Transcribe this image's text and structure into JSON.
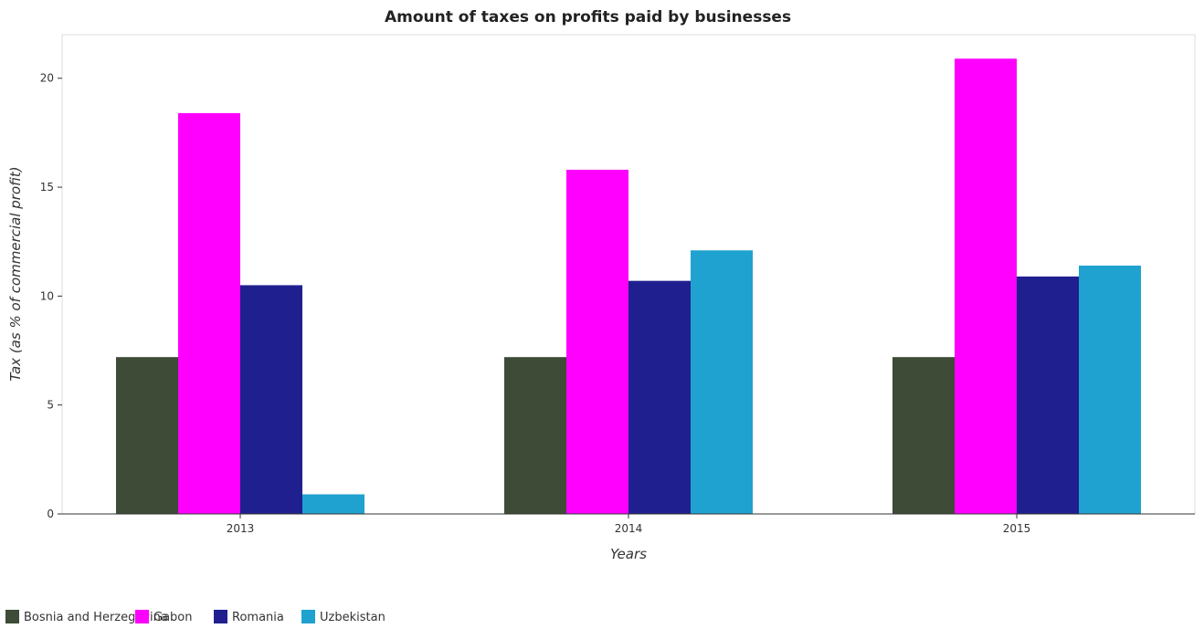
{
  "chart_data": {
    "type": "bar",
    "title": "Amount of taxes on profits paid by businesses",
    "xlabel": "Years",
    "ylabel": "Tax (as % of commercial profit)",
    "categories": [
      "2013",
      "2014",
      "2015"
    ],
    "ylim": [
      0,
      22
    ],
    "yticks": [
      0,
      5,
      10,
      15,
      20
    ],
    "ytick_labels": [
      "0",
      "5",
      "10",
      "15",
      "20"
    ],
    "legend_position": "bottom-left",
    "grid": false,
    "series": [
      {
        "name": "Bosnia and Herzegovina",
        "color": "#3d4b37",
        "values": [
          7.2,
          7.2,
          7.2
        ]
      },
      {
        "name": "Gabon",
        "color": "#ff00ff",
        "values": [
          18.4,
          15.8,
          20.9
        ]
      },
      {
        "name": "Romania",
        "color": "#1f1f8f",
        "values": [
          10.5,
          10.7,
          10.9
        ]
      },
      {
        "name": "Uzbekistan",
        "color": "#1fa2cf",
        "values": [
          0.9,
          12.1,
          11.4
        ]
      }
    ]
  }
}
